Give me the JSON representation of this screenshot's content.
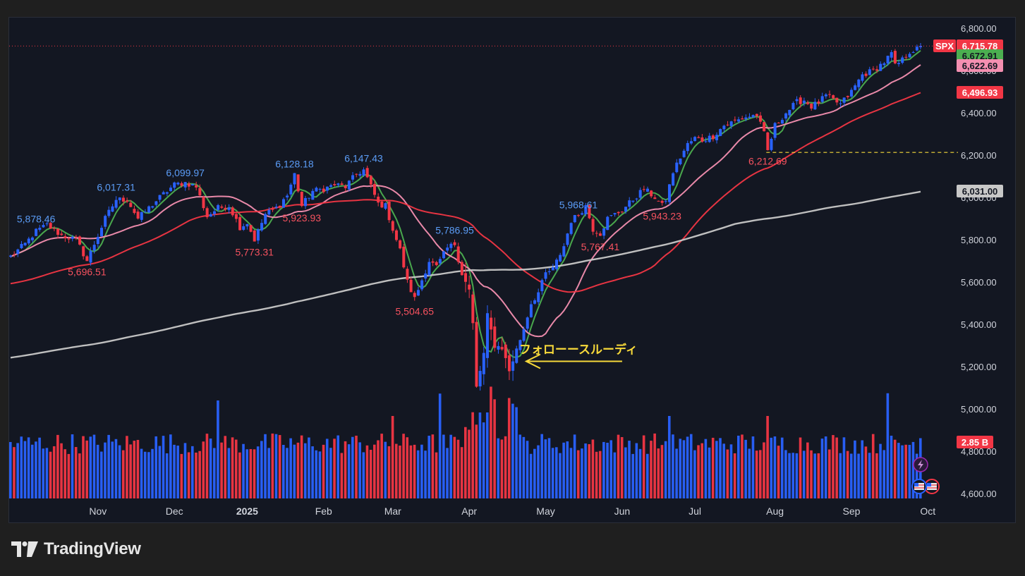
{
  "brand": {
    "name": "TradingView",
    "logo_icon": "tv-logo-icon"
  },
  "chart_data": {
    "type": "candlestick",
    "symbol": "SPX",
    "y_range": [
      4550,
      6860
    ],
    "y_ticks": [
      4600,
      4800,
      5000,
      5200,
      5400,
      5600,
      5800,
      6000,
      6200,
      6400,
      6600,
      6800
    ],
    "y_tick_labels": [
      "4,600.00",
      "4,800.00",
      "5,000.00",
      "5,200.00",
      "5,400.00",
      "5,600.00",
      "5,800.00",
      "6,000.00",
      "6,200.00",
      "6,400.00",
      "6,600.00",
      "6,800.00"
    ],
    "x_labels": [
      {
        "label": "Nov",
        "t": 24
      },
      {
        "label": "Dec",
        "t": 45
      },
      {
        "label": "2025",
        "t": 65
      },
      {
        "label": "Feb",
        "t": 86
      },
      {
        "label": "Mar",
        "t": 105
      },
      {
        "label": "Apr",
        "t": 126
      },
      {
        "label": "May",
        "t": 147
      },
      {
        "label": "Jun",
        "t": 168
      },
      {
        "label": "Jul",
        "t": 188
      },
      {
        "label": "Aug",
        "t": 210
      },
      {
        "label": "Sep",
        "t": 231
      },
      {
        "label": "Oct",
        "t": 252
      }
    ],
    "price_waypoints": [
      [
        0,
        5720
      ],
      [
        4,
        5780
      ],
      [
        7,
        5840
      ],
      [
        10,
        5870
      ],
      [
        14,
        5820
      ],
      [
        18,
        5800
      ],
      [
        21,
        5700
      ],
      [
        23,
        5780
      ],
      [
        26,
        5900
      ],
      [
        29,
        5990
      ],
      [
        32,
        5990
      ],
      [
        35,
        5900
      ],
      [
        38,
        5950
      ],
      [
        41,
        6000
      ],
      [
        45,
        6060
      ],
      [
        48,
        6070
      ],
      [
        51,
        6050
      ],
      [
        54,
        5910
      ],
      [
        57,
        5950
      ],
      [
        60,
        5960
      ],
      [
        63,
        5860
      ],
      [
        65,
        5880
      ],
      [
        67,
        5800
      ],
      [
        70,
        5920
      ],
      [
        73,
        5950
      ],
      [
        76,
        6010
      ],
      [
        78,
        6110
      ],
      [
        80,
        5960
      ],
      [
        83,
        6030
      ],
      [
        86,
        6040
      ],
      [
        89,
        6060
      ],
      [
        92,
        6050
      ],
      [
        95,
        6110
      ],
      [
        97,
        6130
      ],
      [
        99,
        6050
      ],
      [
        101,
        5970
      ],
      [
        103,
        5960
      ],
      [
        105,
        5850
      ],
      [
        107,
        5750
      ],
      [
        109,
        5600
      ],
      [
        111,
        5520
      ],
      [
        113,
        5610
      ],
      [
        115,
        5700
      ],
      [
        117,
        5670
      ],
      [
        120,
        5760
      ],
      [
        122,
        5780
      ],
      [
        124,
        5640
      ],
      [
        126,
        5560
      ],
      [
        127,
        5400
      ],
      [
        128,
        5100
      ],
      [
        130,
        5260
      ],
      [
        131,
        5440
      ],
      [
        133,
        5300
      ],
      [
        135,
        5290
      ],
      [
        137,
        5180
      ],
      [
        139,
        5280
      ],
      [
        141,
        5380
      ],
      [
        143,
        5500
      ],
      [
        145,
        5550
      ],
      [
        147,
        5640
      ],
      [
        149,
        5660
      ],
      [
        152,
        5770
      ],
      [
        154,
        5890
      ],
      [
        156,
        5920
      ],
      [
        158,
        5960
      ],
      [
        160,
        5850
      ],
      [
        162,
        5830
      ],
      [
        164,
        5900
      ],
      [
        166,
        5920
      ],
      [
        168,
        5940
      ],
      [
        171,
        5990
      ],
      [
        174,
        6040
      ],
      [
        177,
        6000
      ],
      [
        179,
        5960
      ],
      [
        180,
        5990
      ],
      [
        182,
        6120
      ],
      [
        184,
        6190
      ],
      [
        186,
        6250
      ],
      [
        188,
        6280
      ],
      [
        190,
        6270
      ],
      [
        193,
        6290
      ],
      [
        196,
        6340
      ],
      [
        199,
        6360
      ],
      [
        202,
        6380
      ],
      [
        205,
        6390
      ],
      [
        207,
        6300
      ],
      [
        208,
        6220
      ],
      [
        210,
        6340
      ],
      [
        213,
        6400
      ],
      [
        216,
        6450
      ],
      [
        218,
        6460
      ],
      [
        220,
        6430
      ],
      [
        222,
        6450
      ],
      [
        224,
        6480
      ],
      [
        226,
        6460
      ],
      [
        228,
        6440
      ],
      [
        231,
        6500
      ],
      [
        234,
        6580
      ],
      [
        237,
        6600
      ],
      [
        240,
        6640
      ],
      [
        242,
        6680
      ],
      [
        243,
        6620
      ],
      [
        245,
        6650
      ],
      [
        247,
        6690
      ],
      [
        249,
        6700
      ],
      [
        250,
        6716
      ]
    ],
    "hline_dashed": 6212.69,
    "annotation": {
      "text": "フォローースルーディ",
      "color": "#f7d93a",
      "t": 137,
      "price": 5225
    },
    "high_labels": [
      {
        "label": "5,878.46",
        "t": 7
      },
      {
        "label": "6,017.31",
        "t": 29
      },
      {
        "label": "6,099.97",
        "t": 48
      },
      {
        "label": "6,128.18",
        "t": 78
      },
      {
        "label": "6,147.43",
        "t": 97
      },
      {
        "label": "5,786.95",
        "t": 122
      },
      {
        "label": "5,968.61",
        "t": 156
      }
    ],
    "low_labels": [
      {
        "label": "5,696.51",
        "t": 21
      },
      {
        "label": "5,773.31",
        "t": 67
      },
      {
        "label": "5,923.93",
        "t": 80
      },
      {
        "label": "5,504.65",
        "t": 111
      },
      {
        "label": "5,767.41",
        "t": 162
      },
      {
        "label": "5,943.23",
        "t": 179
      },
      {
        "label": "6,212.69",
        "t": 208
      }
    ],
    "volume_scale_max": 5.2,
    "volume_last_label": "2.85 B",
    "ma_lines": [
      {
        "color": "#4caf50",
        "period": 5
      },
      {
        "color": "#f48fb1",
        "period": 20
      },
      {
        "color": "#f23645",
        "period": 50
      },
      {
        "color": "#c8c8c8",
        "period": 200
      }
    ],
    "price_tags": [
      {
        "label": "6,715.78",
        "value": 6715.78,
        "bg": "#f23645",
        "fg": "#ffffff"
      },
      {
        "label": "6,672.91",
        "value": 6672.91,
        "bg": "#4caf50",
        "fg": "#131722"
      },
      {
        "label": "6,622.69",
        "value": 6622.69,
        "bg": "#f48fb1",
        "fg": "#131722"
      },
      {
        "label": "6,496.93",
        "value": 6496.93,
        "bg": "#f23645",
        "fg": "#ffffff"
      },
      {
        "label": "6,031.00",
        "value": 6031.0,
        "bg": "#c8c8c8",
        "fg": "#131722"
      }
    ],
    "symbol_tag": {
      "label": "SPX",
      "bg": "#f23645",
      "fg": "#ffffff"
    },
    "up_color": "#2962ff",
    "down_color": "#f23645",
    "grid": false
  }
}
